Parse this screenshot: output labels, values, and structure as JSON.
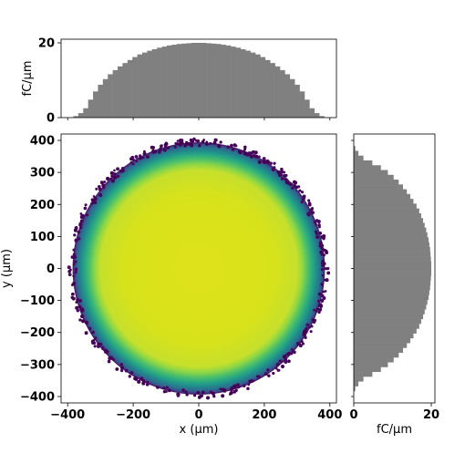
{
  "chart_data": [
    {
      "type": "heatmap",
      "panel": "main",
      "title": "",
      "xlabel": "x (µm)",
      "ylabel": "y (µm)",
      "xlim": [
        -420,
        420
      ],
      "ylim": [
        -420,
        420
      ],
      "xticks": [
        -400,
        -200,
        0,
        200,
        400
      ],
      "yticks": [
        -400,
        -300,
        -200,
        -100,
        0,
        100,
        200,
        300,
        400
      ],
      "xtick_labels": [
        "−400",
        "−200",
        "0",
        "200",
        "400"
      ],
      "ytick_labels": [
        "−400",
        "−300",
        "−200",
        "−100",
        "0",
        "100",
        "200",
        "300",
        "400"
      ],
      "shape": "circle",
      "center": [
        0,
        0
      ],
      "outer_radius": 385,
      "flat_radius": 300,
      "colormap": "viridis",
      "grid": false
    },
    {
      "type": "bar",
      "panel": "top-marginal",
      "xlabel": "",
      "ylabel": "fC/µm",
      "ylim": [
        0,
        20
      ],
      "yticks": [
        0,
        20
      ],
      "ytick_labels": [
        "0",
        "20"
      ],
      "x": [
        -390,
        -375,
        -360,
        -345,
        -330,
        -315,
        -300,
        -285,
        -270,
        -255,
        -240,
        -225,
        -210,
        -195,
        -180,
        -165,
        -150,
        -135,
        -120,
        -105,
        -90,
        -75,
        -60,
        -45,
        -30,
        -15,
        0,
        15,
        30,
        45,
        60,
        75,
        90,
        105,
        120,
        135,
        150,
        165,
        180,
        195,
        210,
        225,
        240,
        255,
        270,
        285,
        300,
        315,
        330,
        345,
        360,
        375,
        390
      ],
      "values": [
        0,
        0.4,
        1.2,
        2.5,
        4.8,
        7.0,
        8.8,
        10.3,
        11.6,
        12.7,
        13.7,
        14.6,
        15.4,
        16.2,
        16.9,
        17.4,
        17.9,
        18.3,
        18.7,
        19.0,
        19.3,
        19.5,
        19.7,
        19.8,
        19.9,
        20.0,
        20.0,
        20.0,
        19.9,
        19.8,
        19.7,
        19.5,
        19.3,
        19.0,
        18.7,
        18.3,
        17.9,
        17.4,
        16.9,
        16.2,
        15.4,
        14.6,
        13.7,
        12.7,
        11.6,
        10.3,
        8.8,
        7.0,
        4.8,
        2.5,
        1.2,
        0.4,
        0
      ],
      "color": "#808080"
    },
    {
      "type": "bar",
      "panel": "right-marginal",
      "xlabel": "fC/µm",
      "ylabel": "",
      "xlim": [
        0,
        20
      ],
      "xticks": [
        0,
        20
      ],
      "xtick_labels": [
        "0",
        "20"
      ],
      "y": [
        -390,
        -375,
        -360,
        -345,
        -330,
        -315,
        -300,
        -285,
        -270,
        -255,
        -240,
        -225,
        -210,
        -195,
        -180,
        -165,
        -150,
        -135,
        -120,
        -105,
        -90,
        -75,
        -60,
        -45,
        -30,
        -15,
        0,
        15,
        30,
        45,
        60,
        75,
        90,
        105,
        120,
        135,
        150,
        165,
        180,
        195,
        210,
        225,
        240,
        255,
        270,
        285,
        300,
        315,
        330,
        345,
        360,
        375,
        390
      ],
      "values": [
        0,
        0.4,
        1.2,
        2.5,
        4.8,
        7.0,
        8.8,
        10.3,
        11.6,
        12.7,
        13.7,
        14.6,
        15.4,
        16.2,
        16.9,
        17.4,
        17.9,
        18.3,
        18.7,
        19.0,
        19.3,
        19.5,
        19.7,
        19.8,
        19.9,
        20.0,
        20.0,
        20.0,
        19.9,
        19.8,
        19.7,
        19.5,
        19.3,
        19.0,
        18.7,
        18.3,
        17.9,
        17.4,
        16.9,
        16.2,
        15.4,
        14.6,
        13.7,
        12.7,
        11.6,
        10.3,
        8.8,
        7.0,
        4.8,
        2.5,
        1.2,
        0.4,
        0
      ],
      "color": "#808080"
    }
  ]
}
